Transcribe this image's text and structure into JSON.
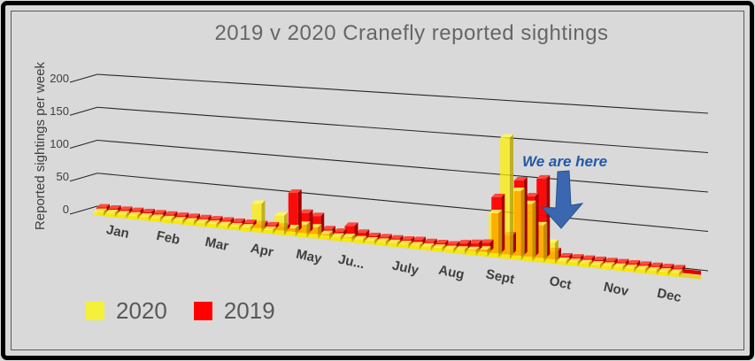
{
  "title": "2019 v 2020 Cranefly reported sightings",
  "y_axis": {
    "label": "Reported sightings per week"
  },
  "annotation": {
    "text": "We are here",
    "color": "#2458A8",
    "arrow_color": "#3A67B0",
    "arrow_direction": "down"
  },
  "legend": [
    {
      "label": "2020",
      "color": "#F5F13A"
    },
    {
      "label": "2019",
      "color": "#FF0000"
    }
  ],
  "colors": {
    "background": "#D9D9D9",
    "frame": "#000000",
    "title_text": "#666666",
    "axis_text": "#3F3F3F",
    "gridline": "#262626",
    "series_2020": "#FFF000",
    "series_2019": "#FF0000"
  },
  "chart_data": {
    "type": "bar",
    "subtype": "3d-clustered-column",
    "title": "2019 v 2020 Cranefly reported sightings",
    "xlabel": "",
    "ylabel": "Reported sightings per week",
    "ylim": [
      0,
      200
    ],
    "yticks": [
      0,
      50,
      100,
      150,
      200
    ],
    "ytick_labels": [
      "0",
      "50",
      "100",
      "150",
      "200"
    ],
    "grid": true,
    "legend_position": "bottom-left",
    "x_unit": "week",
    "month_labels": [
      "Jan",
      "Feb",
      "Mar",
      "Apr",
      "May",
      "Ju...",
      "July",
      "Aug",
      "Sept",
      "Oct",
      "Nov",
      "Dec"
    ],
    "weeks_per_month": [
      4,
      4,
      5,
      4,
      4,
      5,
      4,
      4,
      5,
      4,
      4,
      5
    ],
    "series": [
      {
        "name": "2020",
        "color": "#FFF000",
        "values": [
          1,
          1,
          1,
          1,
          1,
          1,
          1,
          1,
          1,
          1,
          1,
          1,
          1,
          1,
          38,
          2,
          25,
          10,
          16,
          14,
          7,
          5,
          6,
          4,
          3,
          3,
          3,
          3,
          4,
          3,
          3,
          4,
          5,
          6,
          8,
          55,
          150,
          85,
          70,
          45,
          25,
          0,
          0,
          0,
          0,
          0,
          0,
          0,
          0,
          0,
          0,
          0
        ]
      },
      {
        "name": "2019",
        "color": "#FF0000",
        "values": [
          2,
          2,
          2,
          2,
          2,
          2,
          2,
          2,
          2,
          2,
          2,
          2,
          2,
          2,
          2,
          2,
          3,
          55,
          28,
          25,
          8,
          6,
          16,
          8,
          5,
          4,
          4,
          5,
          6,
          4,
          5,
          4,
          8,
          10,
          12,
          75,
          25,
          100,
          80,
          105,
          10,
          2,
          2,
          2,
          2,
          2,
          2,
          2,
          2,
          2,
          2,
          2
        ]
      }
    ],
    "annotations": [
      {
        "text": "We are here",
        "arrow": "down",
        "points_to": "early October (week 41), end of 2020 data"
      }
    ]
  }
}
